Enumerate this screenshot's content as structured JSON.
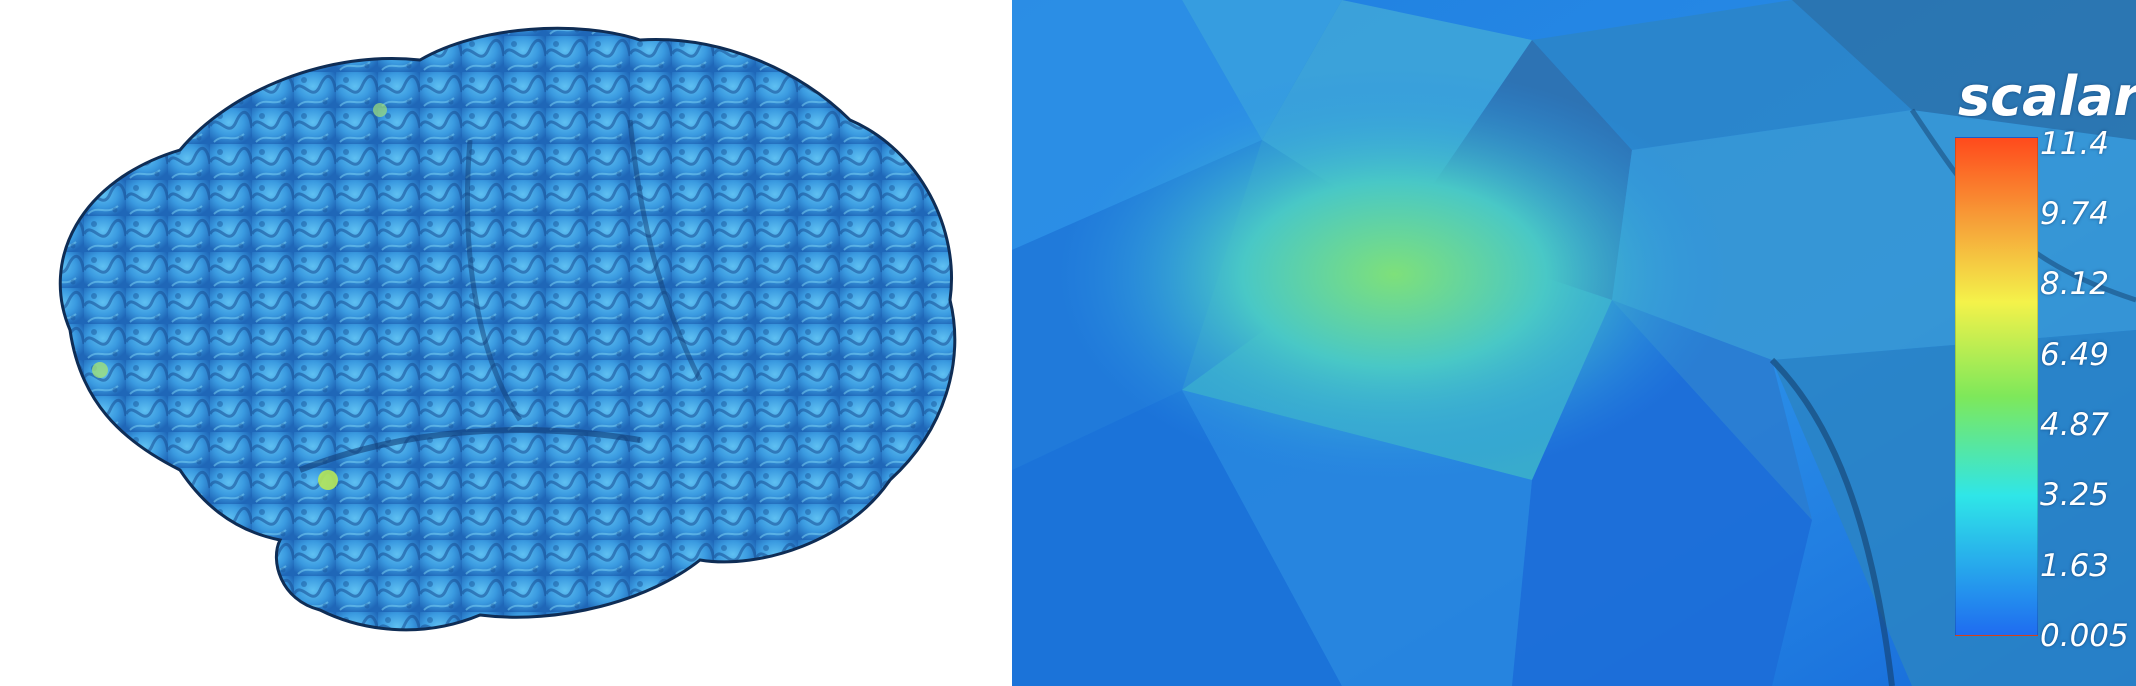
{
  "left_view": {
    "subject": "brain-surface-render"
  },
  "right_view": {
    "subject": "zoomed-mesh-render"
  },
  "scalar_bar": {
    "title": "scalar",
    "ticks": [
      "11.4",
      "9.74",
      "8.12",
      "6.49",
      "4.87",
      "3.25",
      "1.63",
      "0.005"
    ],
    "colors": {
      "top": "#ff4a1c",
      "upper": "#f6a63a",
      "middle_yellow": "#f4f24a",
      "middle_green": "#7ee85a",
      "lower": "#2fe6e8",
      "bottom": "#1f6cf0"
    }
  }
}
